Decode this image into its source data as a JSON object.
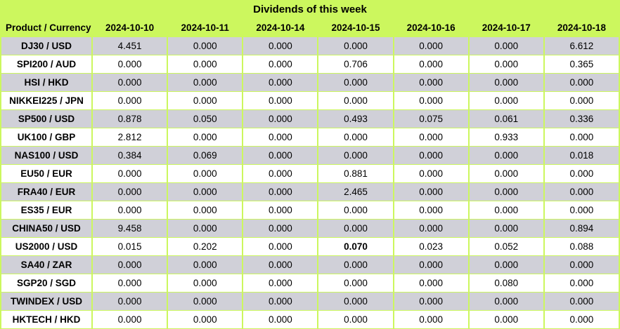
{
  "colors": {
    "accent_green": "#ccf75e",
    "row_gray": "#d0d0d8",
    "row_white": "#ffffff",
    "text": "#000000"
  },
  "chart_data": {
    "type": "table",
    "title": "Dividends of this week",
    "product_column_header": "Product / Currency",
    "date_columns": [
      "2024-10-10",
      "2024-10-11",
      "2024-10-14",
      "2024-10-15",
      "2024-10-16",
      "2024-10-17",
      "2024-10-18"
    ],
    "rows": [
      {
        "product": "DJ30 / USD",
        "values": [
          "4.451",
          "0.000",
          "0.000",
          "0.000",
          "0.000",
          "0.000",
          "6.612"
        ]
      },
      {
        "product": "SPI200 / AUD",
        "values": [
          "0.000",
          "0.000",
          "0.000",
          "0.706",
          "0.000",
          "0.000",
          "0.365"
        ]
      },
      {
        "product": "HSI / HKD",
        "values": [
          "0.000",
          "0.000",
          "0.000",
          "0.000",
          "0.000",
          "0.000",
          "0.000"
        ]
      },
      {
        "product": "NIKKEI225 / JPN",
        "values": [
          "0.000",
          "0.000",
          "0.000",
          "0.000",
          "0.000",
          "0.000",
          "0.000"
        ]
      },
      {
        "product": "SP500 / USD",
        "values": [
          "0.878",
          "0.050",
          "0.000",
          "0.493",
          "0.075",
          "0.061",
          "0.336"
        ]
      },
      {
        "product": "UK100 / GBP",
        "values": [
          "2.812",
          "0.000",
          "0.000",
          "0.000",
          "0.000",
          "0.933",
          "0.000"
        ]
      },
      {
        "product": "NAS100 / USD",
        "values": [
          "0.384",
          "0.069",
          "0.000",
          "0.000",
          "0.000",
          "0.000",
          "0.018"
        ]
      },
      {
        "product": "EU50 / EUR",
        "values": [
          "0.000",
          "0.000",
          "0.000",
          "0.881",
          "0.000",
          "0.000",
          "0.000"
        ]
      },
      {
        "product": "FRA40 / EUR",
        "values": [
          "0.000",
          "0.000",
          "0.000",
          "2.465",
          "0.000",
          "0.000",
          "0.000"
        ]
      },
      {
        "product": "ES35 / EUR",
        "values": [
          "0.000",
          "0.000",
          "0.000",
          "0.000",
          "0.000",
          "0.000",
          "0.000"
        ]
      },
      {
        "product": "CHINA50 / USD",
        "values": [
          "9.458",
          "0.000",
          "0.000",
          "0.000",
          "0.000",
          "0.000",
          "0.894"
        ]
      },
      {
        "product": "US2000 / USD",
        "values": [
          "0.015",
          "0.202",
          "0.000",
          "0.070",
          "0.023",
          "0.052",
          "0.088"
        ],
        "bold_value_indexes": [
          3
        ]
      },
      {
        "product": "SA40 / ZAR",
        "values": [
          "0.000",
          "0.000",
          "0.000",
          "0.000",
          "0.000",
          "0.000",
          "0.000"
        ]
      },
      {
        "product": "SGP20 / SGD",
        "values": [
          "0.000",
          "0.000",
          "0.000",
          "0.000",
          "0.000",
          "0.080",
          "0.000"
        ]
      },
      {
        "product": "TWINDEX / USD",
        "values": [
          "0.000",
          "0.000",
          "0.000",
          "0.000",
          "0.000",
          "0.000",
          "0.000"
        ]
      },
      {
        "product": "HKTECH / HKD",
        "values": [
          "0.000",
          "0.000",
          "0.000",
          "0.000",
          "0.000",
          "0.000",
          "0.000"
        ]
      }
    ]
  }
}
